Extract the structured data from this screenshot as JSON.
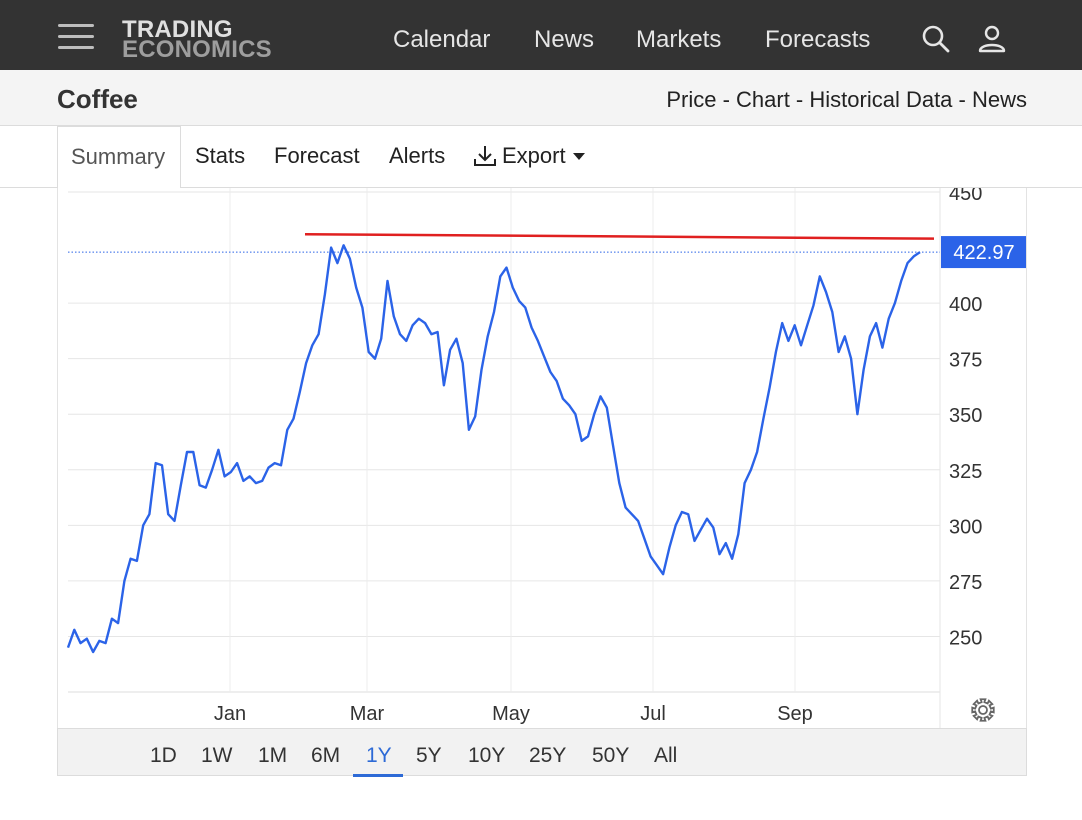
{
  "navbar": {
    "logo_line1": "TRADING",
    "logo_line2": "ECONOMICS",
    "links": [
      "Calendar",
      "News",
      "Markets",
      "Forecasts"
    ],
    "icons": [
      "search-icon",
      "user-icon",
      "menu-icon"
    ]
  },
  "titlebar": {
    "title": "Coffee",
    "subnav": [
      "Price",
      "Chart",
      "Historical Data",
      "News"
    ],
    "separator": " - "
  },
  "tabs": {
    "items": [
      "Summary",
      "Stats",
      "Forecast",
      "Alerts",
      "Export"
    ],
    "active": "Summary"
  },
  "range": {
    "items": [
      "1D",
      "1W",
      "1M",
      "6M",
      "1Y",
      "5Y",
      "10Y",
      "25Y",
      "50Y",
      "All"
    ],
    "active": "1Y"
  },
  "chart_data": {
    "type": "line",
    "x_tick_labels": [
      "Jan",
      "Mar",
      "May",
      "Jul",
      "Sep"
    ],
    "y_tick_labels": [
      "450",
      "400",
      "375",
      "350",
      "325",
      "300",
      "275",
      "250"
    ],
    "ylim": [
      225,
      450
    ],
    "last_value_label": "422.97",
    "grid": true,
    "colors": {
      "line": "#2b63e8",
      "trend": "#e02020",
      "last_value_bg": "#2b63e8"
    },
    "series": [
      {
        "values": [
          245,
          253,
          247,
          249,
          243,
          248,
          247,
          258,
          256,
          275,
          285,
          284,
          300,
          305,
          328,
          327,
          305,
          302,
          318,
          333,
          333,
          318,
          317,
          325,
          334,
          322,
          324,
          328,
          320,
          322,
          319,
          320,
          326,
          328,
          327,
          343,
          348,
          360,
          373,
          381,
          386,
          404,
          425,
          418,
          426,
          420,
          407,
          398,
          378,
          375,
          384,
          410,
          394,
          386,
          383,
          390,
          393,
          391,
          386,
          387,
          363,
          379,
          384,
          373,
          343,
          349,
          370,
          385,
          396,
          412,
          416,
          407,
          401,
          398,
          389,
          383,
          376,
          369,
          365,
          357,
          354,
          350,
          338,
          340,
          350,
          358,
          353,
          336,
          319,
          308,
          305,
          302,
          294,
          286,
          282,
          278,
          290,
          300,
          306,
          305,
          293,
          298,
          303,
          299,
          287,
          292,
          285,
          296,
          319,
          325,
          333,
          348,
          362,
          378,
          391,
          383,
          390,
          381,
          390,
          399,
          412,
          405,
          396,
          378,
          385,
          375,
          350,
          370,
          385,
          391,
          380,
          393,
          400,
          410,
          418,
          421,
          422.97
        ],
        "x_range": [
          "Nov",
          "Oct"
        ]
      }
    ],
    "trend": {
      "from": 431,
      "to": 429
    }
  }
}
